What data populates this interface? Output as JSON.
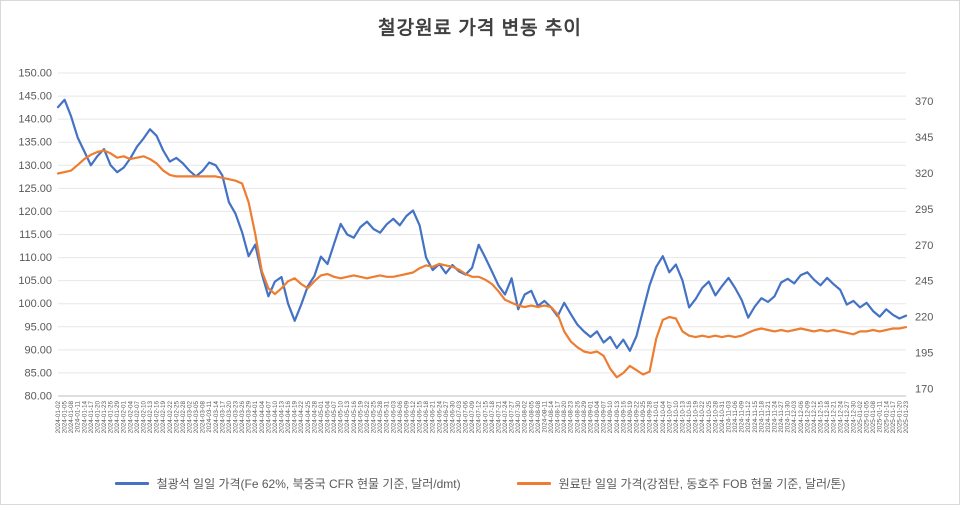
{
  "title": "철강원료 가격 변동 추이",
  "chart_data": {
    "type": "line",
    "grid": true,
    "legend_position": "bottom",
    "x": [
      "2024-01-02",
      "2024-01-05",
      "2024-01-08",
      "2024-01-11",
      "2024-01-14",
      "2024-01-17",
      "2024-01-20",
      "2024-01-23",
      "2024-01-26",
      "2024-01-29",
      "2024-02-01",
      "2024-02-04",
      "2024-02-07",
      "2024-02-10",
      "2024-02-13",
      "2024-02-16",
      "2024-02-19",
      "2024-02-22",
      "2024-02-25",
      "2024-02-28",
      "2024-03-02",
      "2024-03-05",
      "2024-03-08",
      "2024-03-11",
      "2024-03-14",
      "2024-03-17",
      "2024-03-20",
      "2024-03-23",
      "2024-03-26",
      "2024-03-29",
      "2024-04-01",
      "2024-04-04",
      "2024-04-07",
      "2024-04-10",
      "2024-04-13",
      "2024-04-16",
      "2024-04-19",
      "2024-04-22",
      "2024-04-25",
      "2024-04-28",
      "2024-05-01",
      "2024-05-04",
      "2024-05-07",
      "2024-05-10",
      "2024-05-13",
      "2024-05-16",
      "2024-05-19",
      "2024-05-22",
      "2024-05-25",
      "2024-05-28",
      "2024-05-31",
      "2024-06-03",
      "2024-06-06",
      "2024-06-09",
      "2024-06-12",
      "2024-06-15",
      "2024-06-18",
      "2024-06-21",
      "2024-06-24",
      "2024-06-27",
      "2024-06-30",
      "2024-07-03",
      "2024-07-06",
      "2024-07-09",
      "2024-07-12",
      "2024-07-15",
      "2024-07-18",
      "2024-07-21",
      "2024-07-24",
      "2024-07-27",
      "2024-07-30",
      "2024-08-02",
      "2024-08-05",
      "2024-08-08",
      "2024-08-11",
      "2024-08-14",
      "2024-08-17",
      "2024-08-20",
      "2024-08-23",
      "2024-08-26",
      "2024-08-29",
      "2024-09-01",
      "2024-09-04",
      "2024-09-07",
      "2024-09-10",
      "2024-09-13",
      "2024-09-16",
      "2024-09-19",
      "2024-09-22",
      "2024-09-25",
      "2024-09-28",
      "2024-10-01",
      "2024-10-04",
      "2024-10-07",
      "2024-10-10",
      "2024-10-13",
      "2024-10-16",
      "2024-10-19",
      "2024-10-22",
      "2024-10-25",
      "2024-10-28",
      "2024-10-31",
      "2024-11-03",
      "2024-11-06",
      "2024-11-09",
      "2024-11-12",
      "2024-11-15",
      "2024-11-18",
      "2024-11-21",
      "2024-11-24",
      "2024-11-27",
      "2024-11-30",
      "2024-12-03",
      "2024-12-06",
      "2024-12-09",
      "2024-12-12",
      "2024-12-15",
      "2024-12-18",
      "2024-12-21",
      "2024-12-24",
      "2024-12-27",
      "2024-12-30",
      "2025-01-02",
      "2025-01-05",
      "2025-01-08",
      "2025-01-11",
      "2025-01-14",
      "2025-01-17",
      "2025-01-20",
      "2025-01-23"
    ],
    "series": [
      {
        "name": "철광석 일일 가격(Fe 62%, 북중국 CFR 현물 기준, 달러/dmt)",
        "axis": "left",
        "color": "#4472C4",
        "values": [
          142.6,
          144.2,
          140.6,
          136.0,
          133.0,
          130.0,
          132.0,
          133.5,
          130.0,
          128.5,
          129.5,
          131.5,
          134.0,
          135.8,
          137.8,
          136.4,
          133.2,
          130.8,
          131.6,
          130.4,
          128.8,
          127.6,
          128.8,
          130.6,
          130.0,
          127.8,
          122.0,
          119.5,
          115.5,
          110.3,
          112.8,
          106.5,
          101.6,
          104.8,
          105.8,
          100.0,
          96.3,
          99.8,
          103.8,
          106.0,
          110.2,
          108.6,
          113.0,
          117.3,
          115.0,
          114.3,
          116.6,
          117.8,
          116.2,
          115.4,
          117.2,
          118.4,
          117.0,
          119.0,
          120.2,
          117.0,
          110.0,
          107.3,
          108.6,
          106.6,
          108.4,
          107.0,
          106.3,
          107.8,
          112.8,
          110.0,
          107.0,
          104.0,
          102.0,
          105.5,
          98.8,
          102.0,
          102.8,
          99.5,
          100.6,
          99.2,
          97.3,
          100.2,
          97.8,
          95.5,
          94.0,
          92.8,
          94.0,
          91.6,
          92.8,
          90.4,
          92.2,
          89.8,
          93.0,
          98.6,
          104.0,
          108.0,
          110.3,
          106.8,
          108.5,
          105.0,
          99.2,
          101.0,
          103.4,
          104.8,
          101.8,
          103.8,
          105.6,
          103.4,
          100.8,
          97.0,
          99.4,
          101.2,
          100.4,
          101.6,
          104.6,
          105.4,
          104.4,
          106.2,
          106.8,
          105.2,
          104.0,
          105.6,
          104.2,
          103.0,
          99.8,
          100.6,
          99.2,
          100.2,
          98.4,
          97.2,
          98.8,
          97.6,
          96.8,
          97.4
        ]
      },
      {
        "name": "원료탄 일일 가격(강점탄, 동호주 FOB 현물 기준, 달러/톤)",
        "axis": "right",
        "color": "#ED7D31",
        "values": [
          320,
          321,
          322,
          326,
          330,
          333,
          335,
          336,
          334,
          331,
          332,
          330,
          331,
          332,
          330,
          327,
          322,
          319,
          318,
          318,
          318,
          318,
          318,
          318,
          318,
          317,
          316,
          315,
          313,
          300,
          278,
          252,
          240,
          236,
          240,
          245,
          247,
          243,
          240,
          245,
          249,
          250,
          248,
          247,
          248,
          249,
          248,
          247,
          248,
          249,
          248,
          248,
          249,
          250,
          251,
          254,
          256,
          255,
          257,
          256,
          255,
          253,
          250,
          248,
          248,
          246,
          243,
          238,
          232,
          230,
          228,
          227,
          228,
          227,
          228,
          227,
          222,
          210,
          203,
          199,
          196,
          195,
          196,
          193,
          184,
          178,
          181,
          186,
          183,
          180,
          182,
          205,
          218,
          220,
          219,
          210,
          207,
          206,
          207,
          206,
          207,
          206,
          207,
          206,
          207,
          209,
          211,
          212,
          211,
          210,
          211,
          210,
          211,
          212,
          211,
          210,
          211,
          210,
          211,
          210,
          209,
          208,
          210,
          210,
          211,
          210,
          211,
          212,
          212,
          213
        ]
      }
    ],
    "left_axis": {
      "min": 80,
      "max": 150,
      "step": 5,
      "tick_labels": [
        "80.00",
        "85.00",
        "90.00",
        "95.00",
        "100.00",
        "105.00",
        "110.00",
        "115.00",
        "120.00",
        "125.00",
        "130.00",
        "135.00",
        "140.00",
        "145.00",
        "150.00"
      ]
    },
    "right_axis": {
      "min": 165,
      "max": 390,
      "tick_values": [
        170,
        195,
        220,
        245,
        270,
        295,
        320,
        345,
        370
      ],
      "tick_labels": [
        "170",
        "195",
        "220",
        "245",
        "270",
        "295",
        "320",
        "345",
        "370"
      ]
    },
    "colors": {
      "gridline": "#e7e7e7",
      "axis_line": "#bfbfbf",
      "tick_text": "#595959",
      "title_text": "#404040"
    }
  }
}
